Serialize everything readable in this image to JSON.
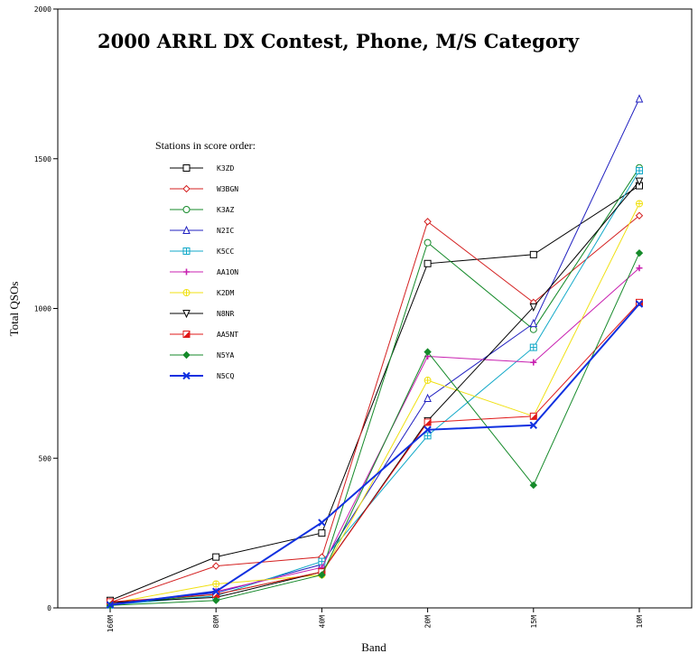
{
  "chart_data": {
    "type": "line",
    "title": "2000 ARRL DX Contest, Phone, M/S Category",
    "xlabel": "Band",
    "ylabel": "Total QSOs",
    "categories": [
      "160M",
      "80M",
      "40M",
      "20M",
      "15M",
      "10M"
    ],
    "ylim": [
      0,
      2000
    ],
    "yticks": [
      0,
      500,
      1000,
      1500,
      2000
    ],
    "grid": false,
    "legend_title": "Stations in score order:",
    "legend_position": "top-left",
    "series": [
      {
        "name": "K3ZD",
        "color": "#000000",
        "marker": "square",
        "values": [
          25,
          170,
          250,
          1150,
          1180,
          1410
        ]
      },
      {
        "name": "W3BGN",
        "color": "#d42020",
        "marker": "diamond",
        "values": [
          18,
          140,
          170,
          1290,
          1020,
          1310
        ]
      },
      {
        "name": "K3AZ",
        "color": "#158a2a",
        "marker": "circle",
        "values": [
          12,
          45,
          120,
          1220,
          930,
          1470
        ]
      },
      {
        "name": "N2IC",
        "color": "#2020c0",
        "marker": "triangle-up",
        "values": [
          15,
          50,
          145,
          700,
          950,
          1700
        ]
      },
      {
        "name": "K5CC",
        "color": "#10a8c8",
        "marker": "square-cross",
        "values": [
          10,
          40,
          155,
          575,
          870,
          1460
        ]
      },
      {
        "name": "AA1ON",
        "color": "#c820b0",
        "marker": "plus",
        "values": [
          12,
          55,
          135,
          840,
          820,
          1135
        ]
      },
      {
        "name": "K2DM",
        "color": "#f0e010",
        "marker": "circle-cross",
        "values": [
          15,
          80,
          110,
          760,
          640,
          1350
        ]
      },
      {
        "name": "N8NR",
        "color": "#000000",
        "marker": "triangle-down",
        "values": [
          18,
          35,
          120,
          625,
          1005,
          1425
        ]
      },
      {
        "name": "AA5NT",
        "color": "#e01818",
        "marker": "square-half",
        "values": [
          20,
          45,
          120,
          620,
          640,
          1020
        ]
      },
      {
        "name": "N5YA",
        "color": "#158a2a",
        "marker": "diamond-filled",
        "values": [
          8,
          25,
          110,
          855,
          410,
          1185
        ]
      },
      {
        "name": "N5CQ",
        "color": "#1030e0",
        "marker": "x",
        "values": [
          10,
          55,
          285,
          595,
          610,
          1015
        ]
      }
    ]
  }
}
